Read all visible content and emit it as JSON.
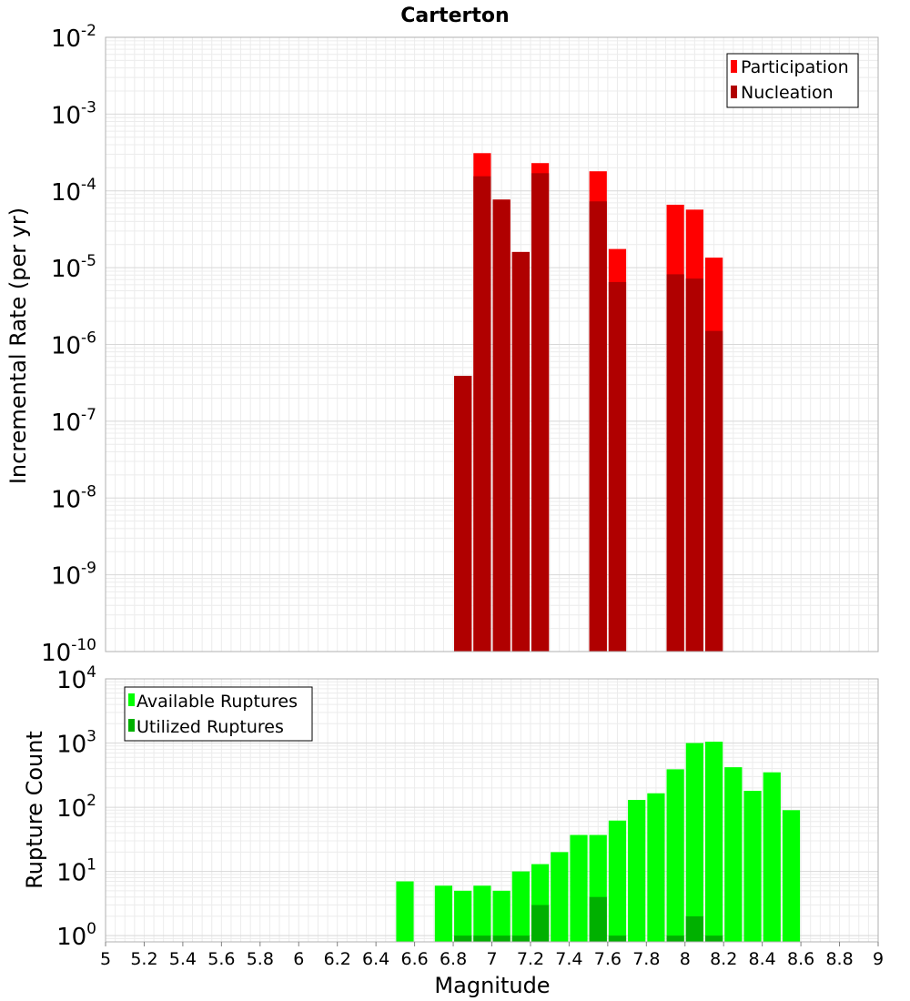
{
  "chart_data": [
    {
      "type": "bar",
      "title": "Carterton",
      "xlabel": "",
      "ylabel": "Incremental Rate (per yr)",
      "y_scale": "log",
      "ylim": [
        1e-10,
        0.01
      ],
      "xlim": [
        5,
        9
      ],
      "grid": true,
      "legend_position": "top-right",
      "y_ticks": [
        {
          "base": "10",
          "exp": "-10"
        },
        {
          "base": "10",
          "exp": "-9"
        },
        {
          "base": "10",
          "exp": "-8"
        },
        {
          "base": "10",
          "exp": "-7"
        },
        {
          "base": "10",
          "exp": "-6"
        },
        {
          "base": "10",
          "exp": "-5"
        },
        {
          "base": "10",
          "exp": "-4"
        },
        {
          "base": "10",
          "exp": "-3"
        },
        {
          "base": "10",
          "exp": "-2"
        }
      ],
      "x": [
        6.85,
        6.95,
        7.05,
        7.15,
        7.25,
        7.55,
        7.65,
        7.95,
        8.05,
        8.15
      ],
      "series": [
        {
          "name": "Participation",
          "color": "#ff0000",
          "values": [
            3.9e-07,
            0.00031,
            7.7e-05,
            1.6e-05,
            0.00023,
            0.00018,
            1.75e-05,
            6.6e-05,
            5.7e-05,
            1.35e-05
          ]
        },
        {
          "name": "Nucleation",
          "color": "#b00000",
          "values": [
            3.9e-07,
            0.000155,
            7.7e-05,
            1.6e-05,
            0.00017,
            7.3e-05,
            6.5e-06,
            8.2e-06,
            7.2e-06,
            1.5e-06
          ]
        }
      ]
    },
    {
      "type": "bar",
      "title": "",
      "xlabel": "Magnitude",
      "ylabel": "Rupture Count",
      "y_scale": "log",
      "ylim": [
        0.8,
        10000
      ],
      "xlim": [
        5,
        9
      ],
      "grid": true,
      "legend_position": "top-left",
      "y_ticks": [
        {
          "base": "10",
          "exp": "0"
        },
        {
          "base": "10",
          "exp": "1"
        },
        {
          "base": "10",
          "exp": "2"
        },
        {
          "base": "10",
          "exp": "3"
        },
        {
          "base": "10",
          "exp": "4"
        }
      ],
      "x_ticks": [
        "5",
        "5.2",
        "5.4",
        "5.6",
        "5.8",
        "6",
        "6.2",
        "6.4",
        "6.6",
        "6.8",
        "7",
        "7.2",
        "7.4",
        "7.6",
        "7.8",
        "8",
        "8.2",
        "8.4",
        "8.6",
        "8.8",
        "9"
      ],
      "x": [
        6.55,
        6.75,
        6.85,
        6.95,
        7.05,
        7.15,
        7.25,
        7.35,
        7.45,
        7.55,
        7.65,
        7.75,
        7.85,
        7.95,
        8.05,
        8.15,
        8.25,
        8.35,
        8.45,
        8.55
      ],
      "series": [
        {
          "name": "Available Ruptures",
          "color": "#00ff00",
          "values": [
            7,
            6,
            5,
            6,
            5,
            10,
            13,
            20,
            37,
            37,
            62,
            130,
            165,
            390,
            1000,
            1050,
            420,
            180,
            350,
            90
          ]
        },
        {
          "name": "Utilized Ruptures",
          "color": "#00b000",
          "values": [
            0,
            0,
            1,
            1,
            1,
            1,
            3,
            0,
            0,
            4,
            1,
            0,
            0,
            1,
            2,
            1,
            0,
            0,
            0,
            0
          ]
        }
      ]
    }
  ]
}
